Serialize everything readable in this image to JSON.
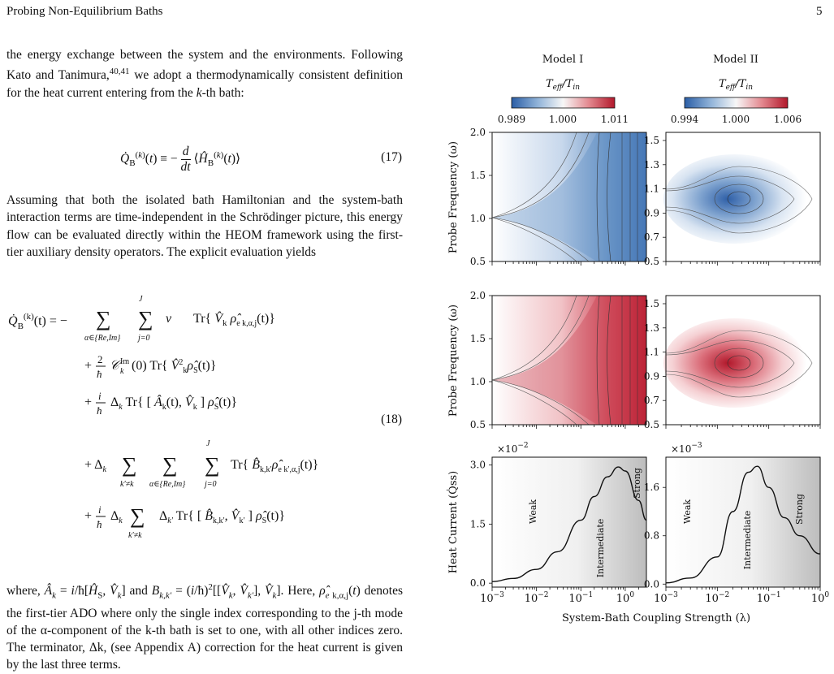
{
  "header": {
    "left": "Probing Non-Equilibrium Baths",
    "page": "5"
  },
  "para1": "the energy exchange between the system and the environments. Following Kato and Tanimura,",
  "para1_ref": "40,41",
  "para1_tail": " we adopt a thermodynamically consistent definition for the heat current entering from the",
  "para1_k": " k",
  "para1_end": "-th bath:",
  "eq17_num": "(17)",
  "para2": "Assuming that both the isolated bath Hamiltonian and the system-bath interaction terms are time-independent in the Schrödinger picture, this energy flow can be evaluated directly within the HEOM framework using the first-tier auxiliary density operators. The explicit evaluation yields",
  "eq18_num": "(18)",
  "para3": "denotes the first-tier ADO where only the single index corresponding to the j-th mode of the α-component of the k-th bath is set to one, with all other indices zero. The terminator, Δk, (see Appendix A) correction for the heat current is given by the last three terms.",
  "figure": {
    "col_titles": [
      "Model I",
      "Model II"
    ],
    "cbar_label": "T_eff/T_in",
    "cbar_ticks_1": [
      "0.989",
      "1.000",
      "1.011"
    ],
    "cbar_ticks_2": [
      "0.994",
      "1.000",
      "1.006"
    ],
    "ylabel_probe": "Probe Frequency (ω)",
    "ylabel_heat": "Heat Current (Q̇ss)",
    "xlabel": "System-Bath Coupling Strength (λ)",
    "yticks_left": [
      "2.0",
      "1.5",
      "1.0",
      "0.5"
    ],
    "yticks_right": [
      "1.5",
      "1.3",
      "1.1",
      "0.9",
      "0.7",
      "0.5"
    ],
    "heat_yticks_left": [
      "3.0",
      "1.5",
      "0.0"
    ],
    "heat_yticks_right": [
      "1.6",
      "0.8",
      "0.0"
    ],
    "heat_scale_left": "×10",
    "heat_scale_left_exp": "−2",
    "heat_scale_right": "×10",
    "heat_scale_right_exp": "−3",
    "regime_labels": [
      "Weak",
      "Intermediate",
      "Strong"
    ],
    "xticks": [
      "10",
      "10",
      "10",
      "10"
    ],
    "xtick_exps": [
      "−3",
      "−2",
      "−1",
      "0"
    ],
    "colors": {
      "cold": "#3a6fb5",
      "hot": "#c01d2f",
      "line": "#111111"
    }
  },
  "chart_data": [
    {
      "type": "line",
      "title": "Model I",
      "xlabel": "System-Bath Coupling Strength (λ)",
      "ylabel": "Heat Current (Q̇ss)",
      "x_scale": "log",
      "xlim": [
        0.001,
        3
      ],
      "ylim": [
        -0.1,
        3.2
      ],
      "y_multiplier": "1e-2",
      "x": [
        0.001,
        0.003,
        0.01,
        0.03,
        0.1,
        0.2,
        0.4,
        0.7,
        1.0,
        2.0,
        3.0
      ],
      "series": [
        {
          "values": [
            0.04,
            0.12,
            0.35,
            0.8,
            1.6,
            2.2,
            2.7,
            2.95,
            2.85,
            2.1,
            1.6
          ]
        }
      ]
    },
    {
      "type": "line",
      "title": "Model II",
      "xlabel": "System-Bath Coupling Strength (λ)",
      "ylabel": "Heat Current (Q̇ss)",
      "x_scale": "log",
      "xlim": [
        0.001,
        1
      ],
      "ylim": [
        -0.05,
        2.1
      ],
      "y_multiplier": "1e-3",
      "x": [
        0.001,
        0.003,
        0.01,
        0.02,
        0.04,
        0.06,
        0.1,
        0.2,
        0.4,
        1.0
      ],
      "series": [
        {
          "values": [
            0.02,
            0.1,
            0.45,
            1.2,
            1.85,
            1.95,
            1.6,
            1.1,
            0.8,
            0.5
          ]
        }
      ]
    }
  ]
}
